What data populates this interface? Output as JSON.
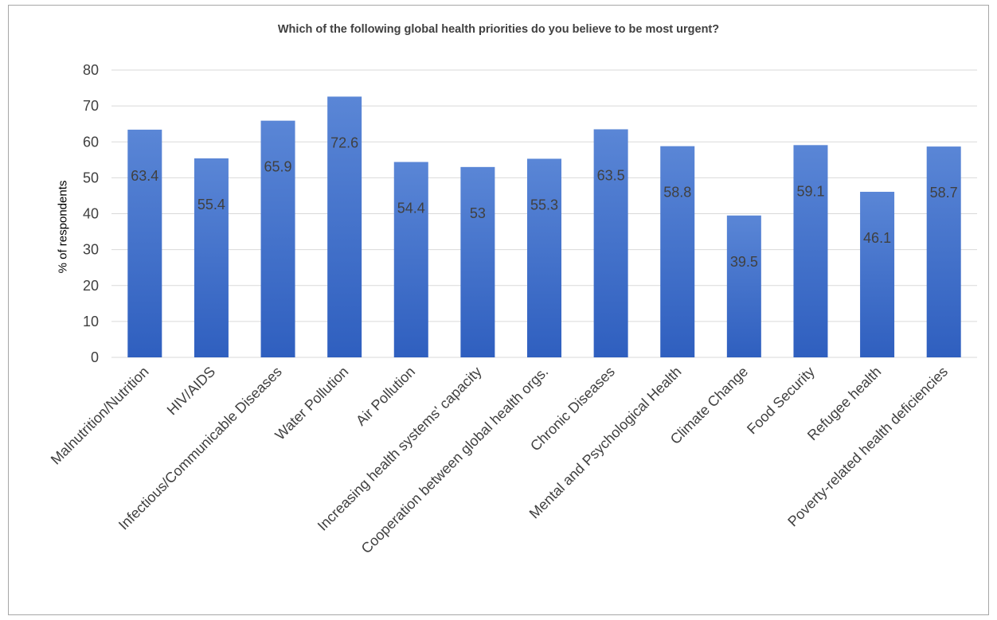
{
  "chart_data": {
    "type": "bar",
    "title": "Which of the following global health priorities do you believe to be most urgent?",
    "xlabel": "",
    "ylabel": "% of respondents",
    "ylim": [
      0,
      80
    ],
    "yticks": [
      0,
      10,
      20,
      30,
      40,
      50,
      60,
      70,
      80
    ],
    "grid": true,
    "legend": "none",
    "categories": [
      "Malnutrition/Nutrition",
      "HIV/AIDS",
      "Infectious/Communicable Diseases",
      "Water Pollution",
      "Air Pollution",
      "Increasing health systems' capacity",
      "Cooperation between global health orgs.",
      "Chronic Diseases",
      "Mental and Psychological Health",
      "Climate Change",
      "Food Security",
      "Refugee health",
      "Poverty-related health deficiencies"
    ],
    "values": [
      63.4,
      55.4,
      65.9,
      72.6,
      54.4,
      53,
      55.3,
      63.5,
      58.8,
      39.5,
      59.1,
      46.1,
      58.7
    ],
    "colors": {
      "bar_top": "#5a86d6",
      "bar_bottom": "#2f5fbf",
      "grid": "#d9d9d9",
      "text": "#404040"
    }
  }
}
